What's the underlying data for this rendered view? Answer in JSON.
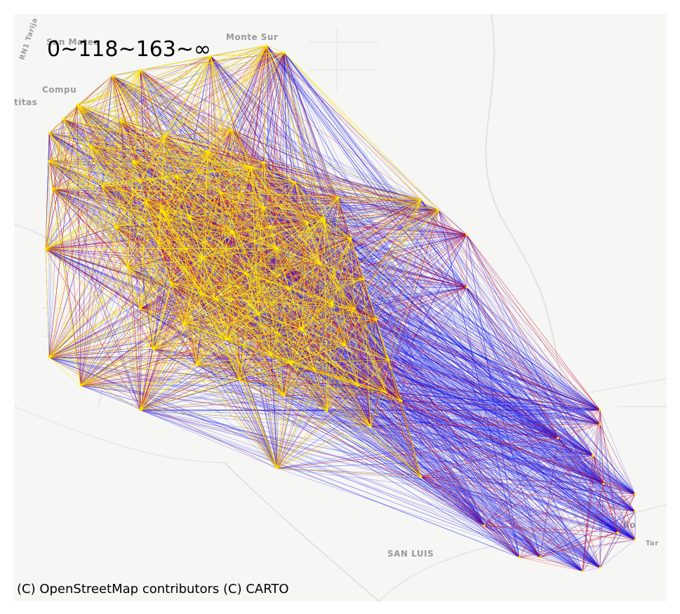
{
  "legend_text": "0~118~163~∞",
  "attribution": "(C) OpenStreetMap contributors (C) CARTO",
  "basemap_labels": [
    "San Mateo",
    "Monte Sur",
    "Compu",
    "titas",
    "SAN LUIS",
    "RN1 Tarija",
    "ilo",
    "Tar"
  ],
  "colors": {
    "band_low": "#ffee00",
    "band_mid": "#e01010",
    "band_high": "#1515e8",
    "basemap_background": "#f6f6f4",
    "basemap_roads": "#e2e2e0"
  }
}
